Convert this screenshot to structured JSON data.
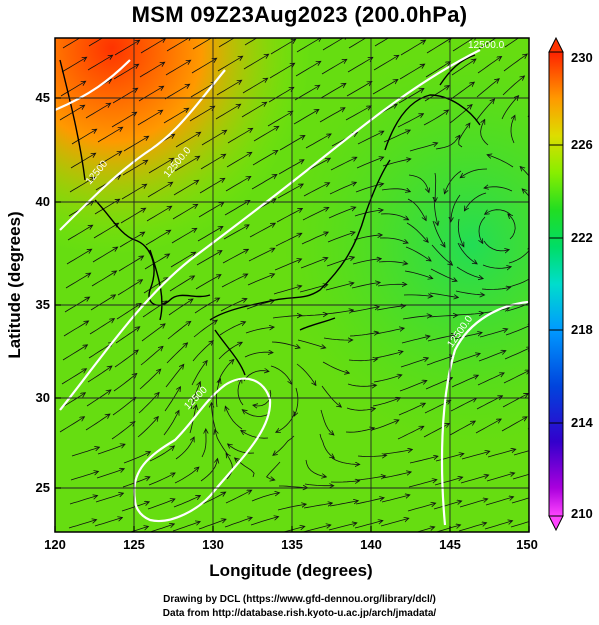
{
  "title": "MSM 09Z23Aug2023 (200.0hPa)",
  "x_axis": {
    "label": "Longitude (degrees)",
    "ticks": [
      "120",
      "125",
      "130",
      "135",
      "140",
      "145",
      "150"
    ],
    "range": [
      120,
      150
    ]
  },
  "y_axis": {
    "label": "Latitude (degrees)",
    "ticks": [
      "25",
      "30",
      "35",
      "40",
      "45"
    ],
    "range": [
      22.4,
      47.6
    ]
  },
  "colorbar": {
    "ticks": [
      "210",
      "214",
      "218",
      "222",
      "226",
      "230"
    ],
    "range": [
      210,
      230
    ],
    "colors": [
      "#ff44ff",
      "#5500cc",
      "#0033cc",
      "#0077ff",
      "#00ccee",
      "#00dd88",
      "#22dd22",
      "#88ee00",
      "#ddee00",
      "#ffaa00",
      "#ff5500",
      "#ff2200"
    ]
  },
  "contour_labels": [
    "12500.0",
    "12500",
    "12500.0",
    "12500.0",
    "12500"
  ],
  "credits": {
    "line1": "Drawing by DCL (https://www.gfd-dennou.org/library/dcl/)",
    "line2": "Data from http://database.rish.kyoto-u.ac.jp/arch/jmadata/"
  }
}
